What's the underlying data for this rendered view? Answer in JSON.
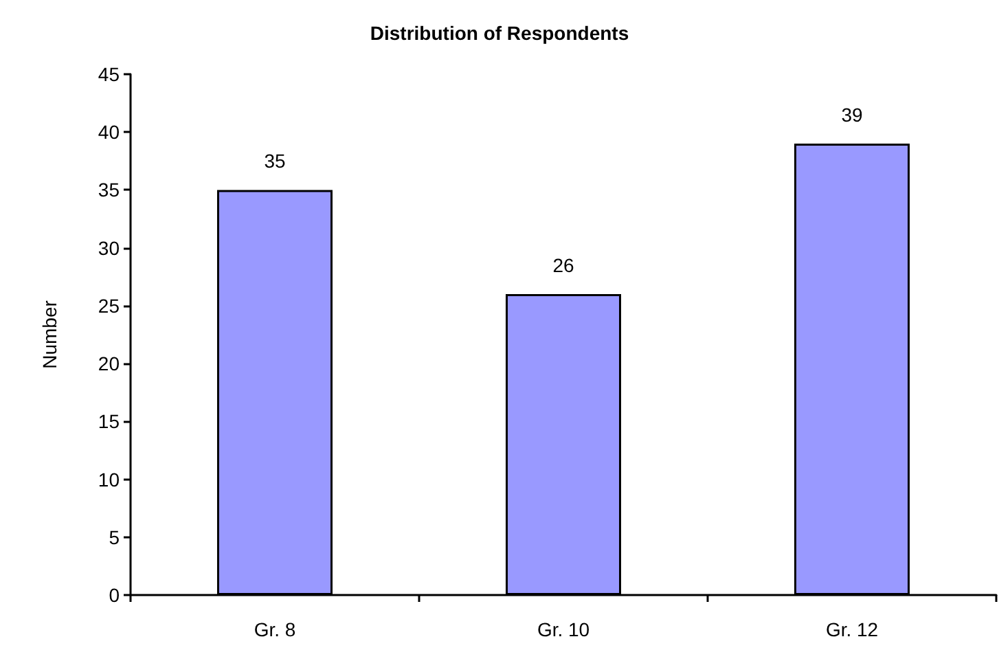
{
  "chart_data": {
    "type": "bar",
    "title": "Distribution of Respondents",
    "ylabel": "Number",
    "categories": [
      "Gr. 8",
      "Gr. 10",
      "Gr. 12"
    ],
    "values": [
      35,
      26,
      39
    ],
    "color": "#9999ff",
    "ylim": [
      0,
      45
    ],
    "yticks": [
      0,
      5,
      10,
      15,
      20,
      25,
      30,
      35,
      40,
      45
    ],
    "grid": false,
    "data_labels": true
  }
}
